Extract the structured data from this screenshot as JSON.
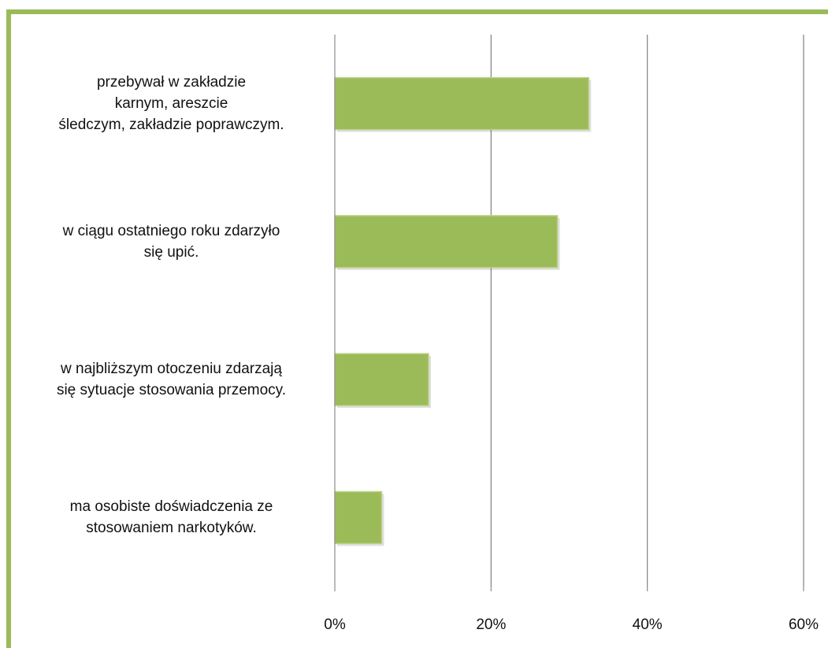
{
  "colors": {
    "frame": "#9bbb59",
    "bar": "#9bbb59",
    "bar_edge": "#bfd18a",
    "grid": "#7f7f7f",
    "axis": "#8c8c8c"
  },
  "chart_data": {
    "type": "bar",
    "orientation": "horizontal",
    "categories": [
      "przebywał w zakładzie karnym, areszcie śledczym, zakładzie poprawczym.",
      "w ciągu ostatniego roku zdarzyło się upić.",
      "w najbliższym otoczeniu zdarzają się sytuacje stosowania przemocy.",
      "ma osobiste doświadczenia ze stosowaniem narkotyków."
    ],
    "category_lines": [
      [
        "przebywał w zakładzie",
        "karnym, areszcie",
        "śledczym, zakładzie poprawczym."
      ],
      [
        "w ciągu ostatniego  roku zdarzyło",
        "się upić."
      ],
      [
        "w najbliższym  otoczeniu zdarzają",
        "się sytuacje  stosowania  przemocy."
      ],
      [
        "ma osobiste  doświadczenia ze",
        "stosowaniem narkotyków."
      ]
    ],
    "values": [
      32.5,
      28.5,
      12,
      6
    ],
    "xlim": [
      0,
      60
    ],
    "ticks": [
      0,
      20,
      40,
      60
    ],
    "tick_labels": [
      "0%",
      "20%",
      "40%",
      "60%"
    ],
    "grid": true,
    "legend": "none",
    "title": "",
    "xlabel": "",
    "ylabel": ""
  }
}
